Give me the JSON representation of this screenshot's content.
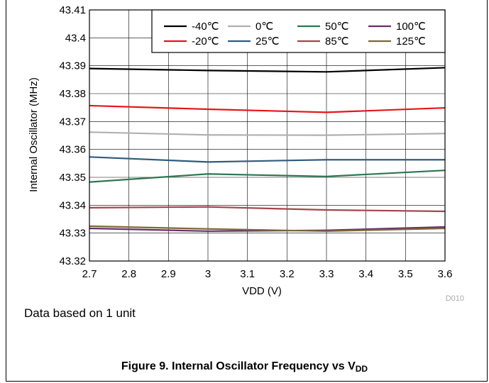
{
  "chart_data": {
    "type": "line",
    "xlabel": "VDD (V)",
    "ylabel": "Internal Oscillator (MHz)",
    "xlim": [
      2.7,
      3.6
    ],
    "ylim": [
      43.32,
      43.41
    ],
    "x_ticks": [
      "2.7",
      "2.8",
      "2.9",
      "3",
      "3.1",
      "3.2",
      "3.3",
      "3.4",
      "3.5",
      "3.6"
    ],
    "y_ticks": [
      "43.32",
      "43.33",
      "43.34",
      "43.35",
      "43.36",
      "43.37",
      "43.38",
      "43.39",
      "43.4",
      "43.41"
    ],
    "grid": true,
    "legend_position": "top-right",
    "watermark": "D010",
    "x": [
      2.7,
      3.0,
      3.3,
      3.6
    ],
    "series": [
      {
        "name": "-40℃",
        "color": "#000000",
        "values": [
          43.389,
          43.3883,
          43.3878,
          43.3893
        ]
      },
      {
        "name": "-20℃",
        "color": "#e8141a",
        "values": [
          43.3757,
          43.3744,
          43.3733,
          43.3749
        ]
      },
      {
        "name": "0℃",
        "color": "#b0b0b0",
        "values": [
          43.3662,
          43.3652,
          43.3651,
          43.3657
        ]
      },
      {
        "name": "25℃",
        "color": "#2f5c7e",
        "values": [
          43.3573,
          43.3555,
          43.3563,
          43.3563
        ]
      },
      {
        "name": "50℃",
        "color": "#2e7550",
        "values": [
          43.3483,
          43.3512,
          43.3503,
          43.3525
        ]
      },
      {
        "name": "85℃",
        "color": "#a3464c",
        "values": [
          43.3391,
          43.3394,
          43.3383,
          43.3378
        ]
      },
      {
        "name": "100℃",
        "color": "#6a2e6d",
        "values": [
          43.3317,
          43.3307,
          43.331,
          43.3322
        ]
      },
      {
        "name": "125℃",
        "color": "#7c6a35",
        "values": [
          43.3325,
          43.3315,
          43.3307,
          43.3317
        ]
      }
    ]
  },
  "note": "Data based on 1 unit",
  "caption": {
    "text": "Figure 9. Internal Oscillator Frequency vs V",
    "sub": "DD"
  }
}
